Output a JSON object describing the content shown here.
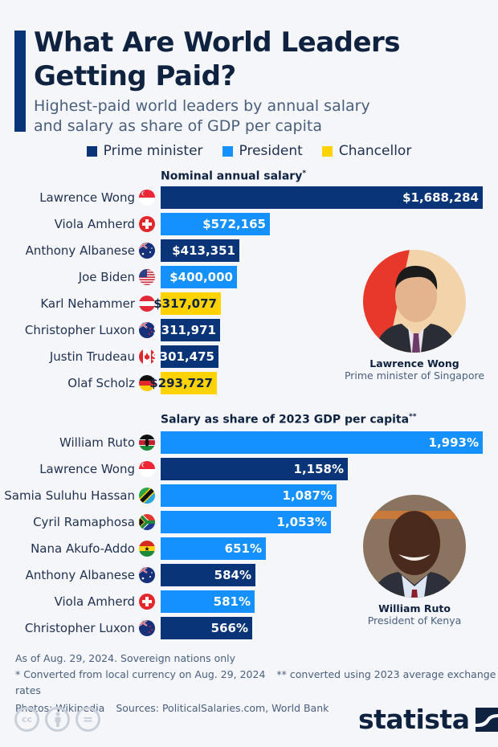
{
  "header": {
    "title": "What Are World Leaders Getting Paid?",
    "subtitle_line1": "Highest-paid world leaders by annual salary",
    "subtitle_line2": "and salary as share of GDP per capita"
  },
  "legend": [
    {
      "label": "Prime minister",
      "color": "#0a3478"
    },
    {
      "label": "President",
      "color": "#1491ff"
    },
    {
      "label": "Chancellor",
      "color": "#ffd200"
    }
  ],
  "colors": {
    "prime_minister": "#0a3478",
    "president": "#1491ff",
    "chancellor": "#ffd200",
    "accent": "#0a3478",
    "background": "#f4f6f9"
  },
  "chart_data": [
    {
      "type": "bar",
      "orientation": "horizontal",
      "title": "Nominal annual salary*",
      "categories": [
        "Lawrence Wong",
        "Viola Amherd",
        "Anthony Albanese",
        "Joe Biden",
        "Karl Nehammer",
        "Christopher Luxon",
        "Justin Trudeau",
        "Olaf Scholz"
      ],
      "values": [
        1688284,
        572165,
        413351,
        400000,
        317077,
        311971,
        301475,
        293727
      ],
      "labels": [
        "$1,688,284",
        "$572,165",
        "$413,351",
        "$400,000",
        "$317,077",
        "$311,971",
        "$301,475",
        "$293,727"
      ],
      "roles": [
        "Prime minister",
        "President",
        "Prime minister",
        "President",
        "Chancellor",
        "Prime minister",
        "Prime minister",
        "Chancellor"
      ],
      "countries": [
        "Singapore",
        "Switzerland",
        "Australia",
        "United States",
        "Austria",
        "New Zealand",
        "Canada",
        "Germany"
      ],
      "xlabel": "",
      "ylabel": "",
      "grid": false,
      "legend_position": "top"
    },
    {
      "type": "bar",
      "orientation": "horizontal",
      "title": "Salary as share of 2023 GDP per capita**",
      "categories": [
        "William Ruto",
        "Lawrence Wong",
        "Samia Suluhu Hassan",
        "Cyril Ramaphosa",
        "Nana Akufo-Addo",
        "Anthony Albanese",
        "Viola Amherd",
        "Christopher Luxon"
      ],
      "values": [
        1993,
        1158,
        1087,
        1053,
        651,
        584,
        581,
        566
      ],
      "labels": [
        "1,993%",
        "1,158%",
        "1,087%",
        "1,053%",
        "651%",
        "584%",
        "581%",
        "566%"
      ],
      "roles": [
        "President",
        "Prime minister",
        "President",
        "President",
        "President",
        "Prime minister",
        "President",
        "Prime minister"
      ],
      "countries": [
        "Kenya",
        "Singapore",
        "Tanzania",
        "South Africa",
        "Ghana",
        "Australia",
        "Switzerland",
        "New Zealand"
      ],
      "unit": "%",
      "xlabel": "",
      "ylabel": "",
      "grid": false
    }
  ],
  "section1": {
    "title": "Nominal annual salary",
    "title_mark": "*",
    "portrait": {
      "name": "Lawrence Wong",
      "role": "Prime minister of Singapore"
    }
  },
  "section2": {
    "title": "Salary as share of 2023 GDP per capita",
    "title_mark": "**",
    "portrait": {
      "name": "William Ruto",
      "role": "President of Kenya"
    }
  },
  "footer": {
    "note": "As of Aug. 29, 2024. Sovereign nations only",
    "footnote1": "* Converted from local currency on Aug. 29, 2024",
    "footnote2": "** converted using 2023 average exchange rates",
    "photos": "Photos: Wikipedia",
    "sources": "Sources: PoliticalSalaries.com, World Bank"
  },
  "license_icons": [
    {
      "name": "cc-icon",
      "glyph": "cc"
    },
    {
      "name": "attribution-icon",
      "glyph": "●"
    },
    {
      "name": "no-derivatives-icon",
      "glyph": "="
    }
  ],
  "logo": {
    "text": "statista"
  }
}
